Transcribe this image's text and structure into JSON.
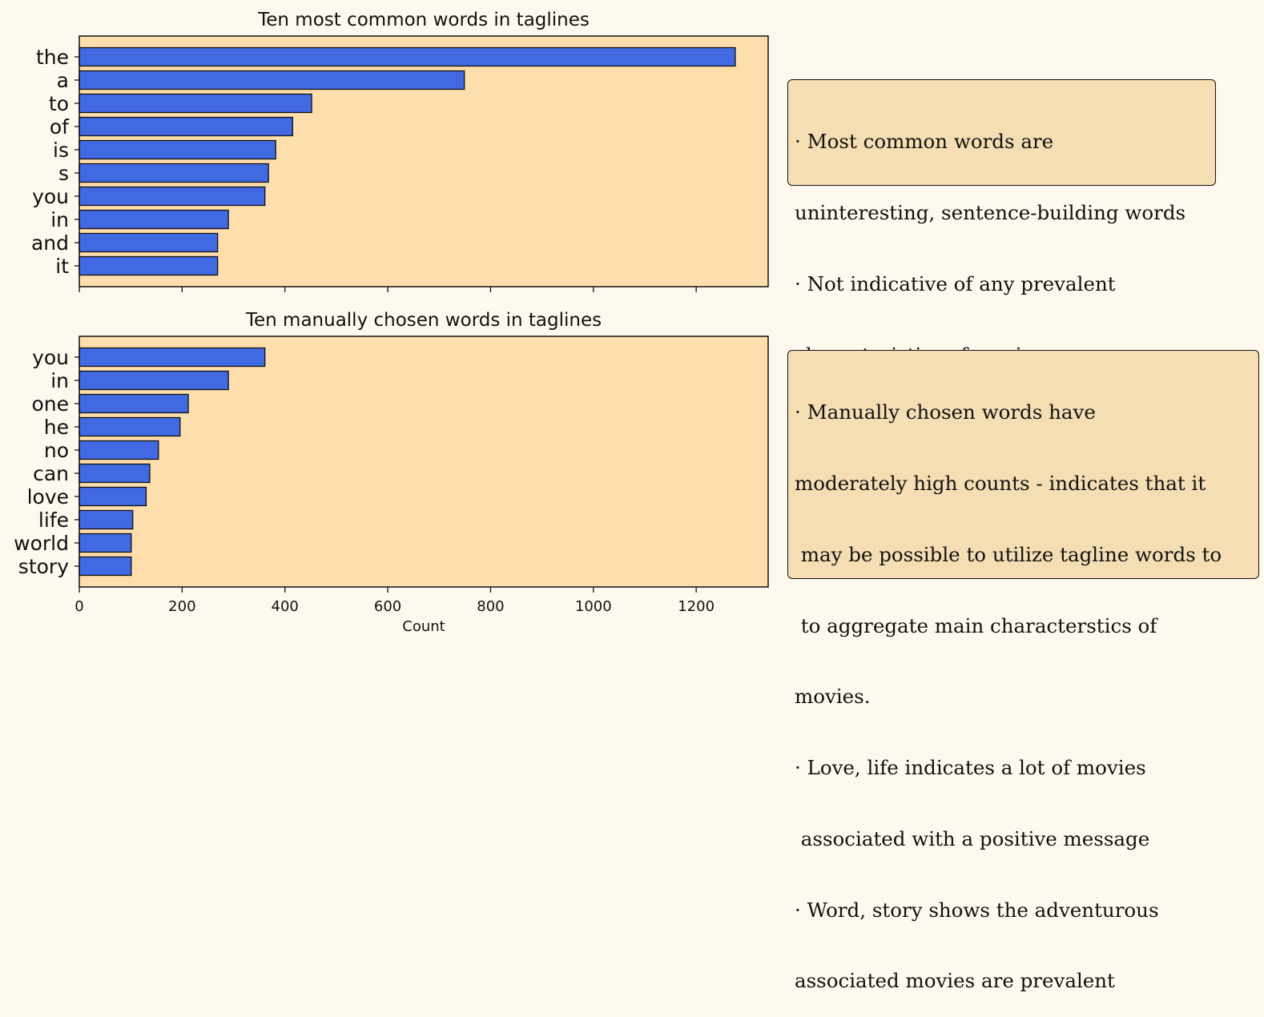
{
  "chart_data": [
    {
      "type": "bar",
      "orientation": "horizontal",
      "title": "Ten most common words in taglines",
      "categories": [
        "the",
        "a",
        "to",
        "of",
        "is",
        "s",
        "you",
        "in",
        "and",
        "it"
      ],
      "values": [
        1276,
        749,
        452,
        415,
        382,
        368,
        361,
        290,
        269,
        269
      ],
      "xlabel": "",
      "ylabel": "",
      "xlim": [
        0,
        1340
      ],
      "xticks": [
        "0",
        "200",
        "400",
        "600",
        "800",
        "1000",
        "1200"
      ],
      "show_tick_labels": false,
      "bar_color": "#4169e1",
      "plot_background": "#ffdead"
    },
    {
      "type": "bar",
      "orientation": "horizontal",
      "title": "Ten manually chosen words in taglines",
      "categories": [
        "you",
        "in",
        "one",
        "he",
        "no",
        "can",
        "love",
        "life",
        "world",
        "story"
      ],
      "values": [
        361,
        290,
        212,
        196,
        154,
        137,
        130,
        104,
        101,
        101
      ],
      "xlabel": "Count",
      "ylabel": "",
      "xlim": [
        0,
        1340
      ],
      "xticks": [
        "0",
        "200",
        "400",
        "600",
        "800",
        "1000",
        "1200"
      ],
      "show_tick_labels": true,
      "bar_color": "#4169e1",
      "plot_background": "#ffdead"
    }
  ],
  "notes": {
    "top": [
      "· Most common words are",
      "uninteresting, sentence-building words",
      "· Not indicative of any prevalent",
      "characteristics of movies"
    ],
    "bottom": [
      "· Manually chosen words have",
      "moderately high counts - indicates that it",
      " may be possible to utilize tagline words to",
      " to aggregate main characterstics of",
      "movies.",
      "· Love, life indicates a lot of movies",
      " associated with a positive message",
      "· Word, story shows the adventurous",
      "associated movies are prevalent"
    ]
  },
  "colors": {
    "page_background": "#fef9ef",
    "note_background": "#f5deb3"
  }
}
